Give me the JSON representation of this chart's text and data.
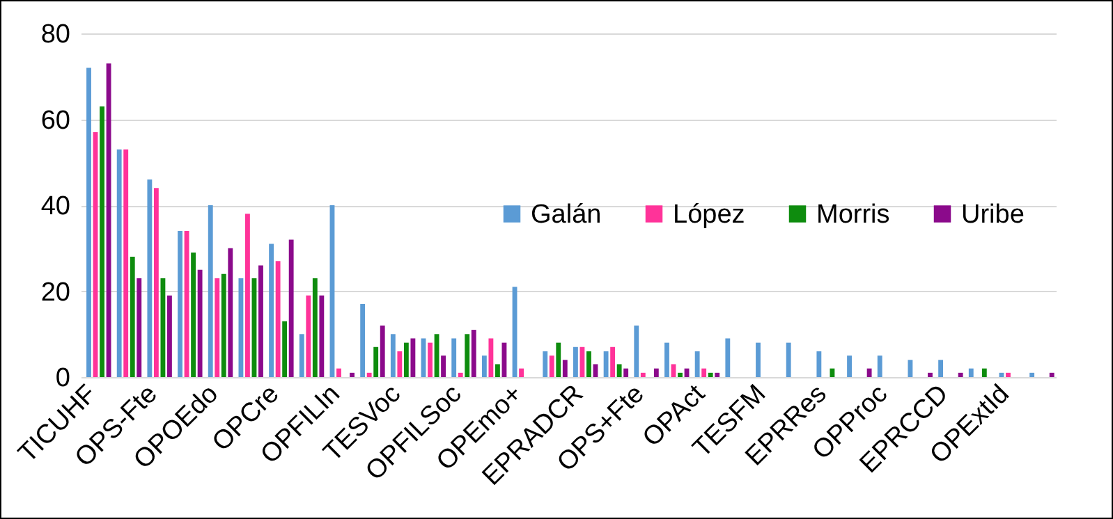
{
  "chart_data": {
    "type": "bar",
    "categories": [
      "TICUHF",
      null,
      "OPS-Fte",
      null,
      "OPOEdo",
      null,
      "OPCre",
      null,
      "OPFILIn",
      null,
      "TESVoc",
      null,
      "OPFILSoc",
      null,
      "OPEmo+",
      null,
      "EPRADCR",
      null,
      "OPS+Fte",
      null,
      "OPAct",
      null,
      "TESFM",
      null,
      "EPRRes",
      null,
      "OPProc",
      null,
      "EPRCCD",
      null,
      "OPExtId",
      null
    ],
    "series": [
      {
        "name": "Galán",
        "color": "#5b9bd5",
        "values": [
          72,
          53,
          46,
          34,
          40,
          23,
          31,
          10,
          40,
          17,
          10,
          9,
          9,
          5,
          21,
          6,
          7,
          6,
          12,
          8,
          6,
          9,
          8,
          8,
          6,
          5,
          5,
          4,
          4,
          2,
          1,
          1
        ]
      },
      {
        "name": "López",
        "color": "#ff3399",
        "values": [
          57,
          53,
          44,
          34,
          23,
          38,
          27,
          19,
          2,
          1,
          6,
          8,
          1,
          9,
          2,
          5,
          7,
          7,
          1,
          3,
          2,
          0,
          0,
          0,
          0,
          0,
          0,
          0,
          0,
          0,
          1,
          0
        ]
      },
      {
        "name": "Morris",
        "color": "#0e8c0e",
        "values": [
          63,
          28,
          23,
          29,
          24,
          23,
          13,
          23,
          0,
          7,
          8,
          10,
          10,
          3,
          0,
          8,
          6,
          3,
          0,
          1,
          1,
          0,
          0,
          0,
          2,
          0,
          0,
          0,
          0,
          2,
          0,
          0
        ]
      },
      {
        "name": "Uribe",
        "color": "#8b0a8b",
        "values": [
          73,
          23,
          19,
          25,
          30,
          26,
          32,
          19,
          1,
          12,
          9,
          5,
          11,
          8,
          0,
          4,
          3,
          2,
          2,
          2,
          1,
          0,
          0,
          0,
          0,
          2,
          0,
          1,
          1,
          0,
          0,
          1
        ]
      }
    ],
    "ylim": [
      0,
      80
    ],
    "yticks": [
      0,
      20,
      40,
      60,
      80
    ],
    "grid": "y",
    "legend": "right"
  }
}
